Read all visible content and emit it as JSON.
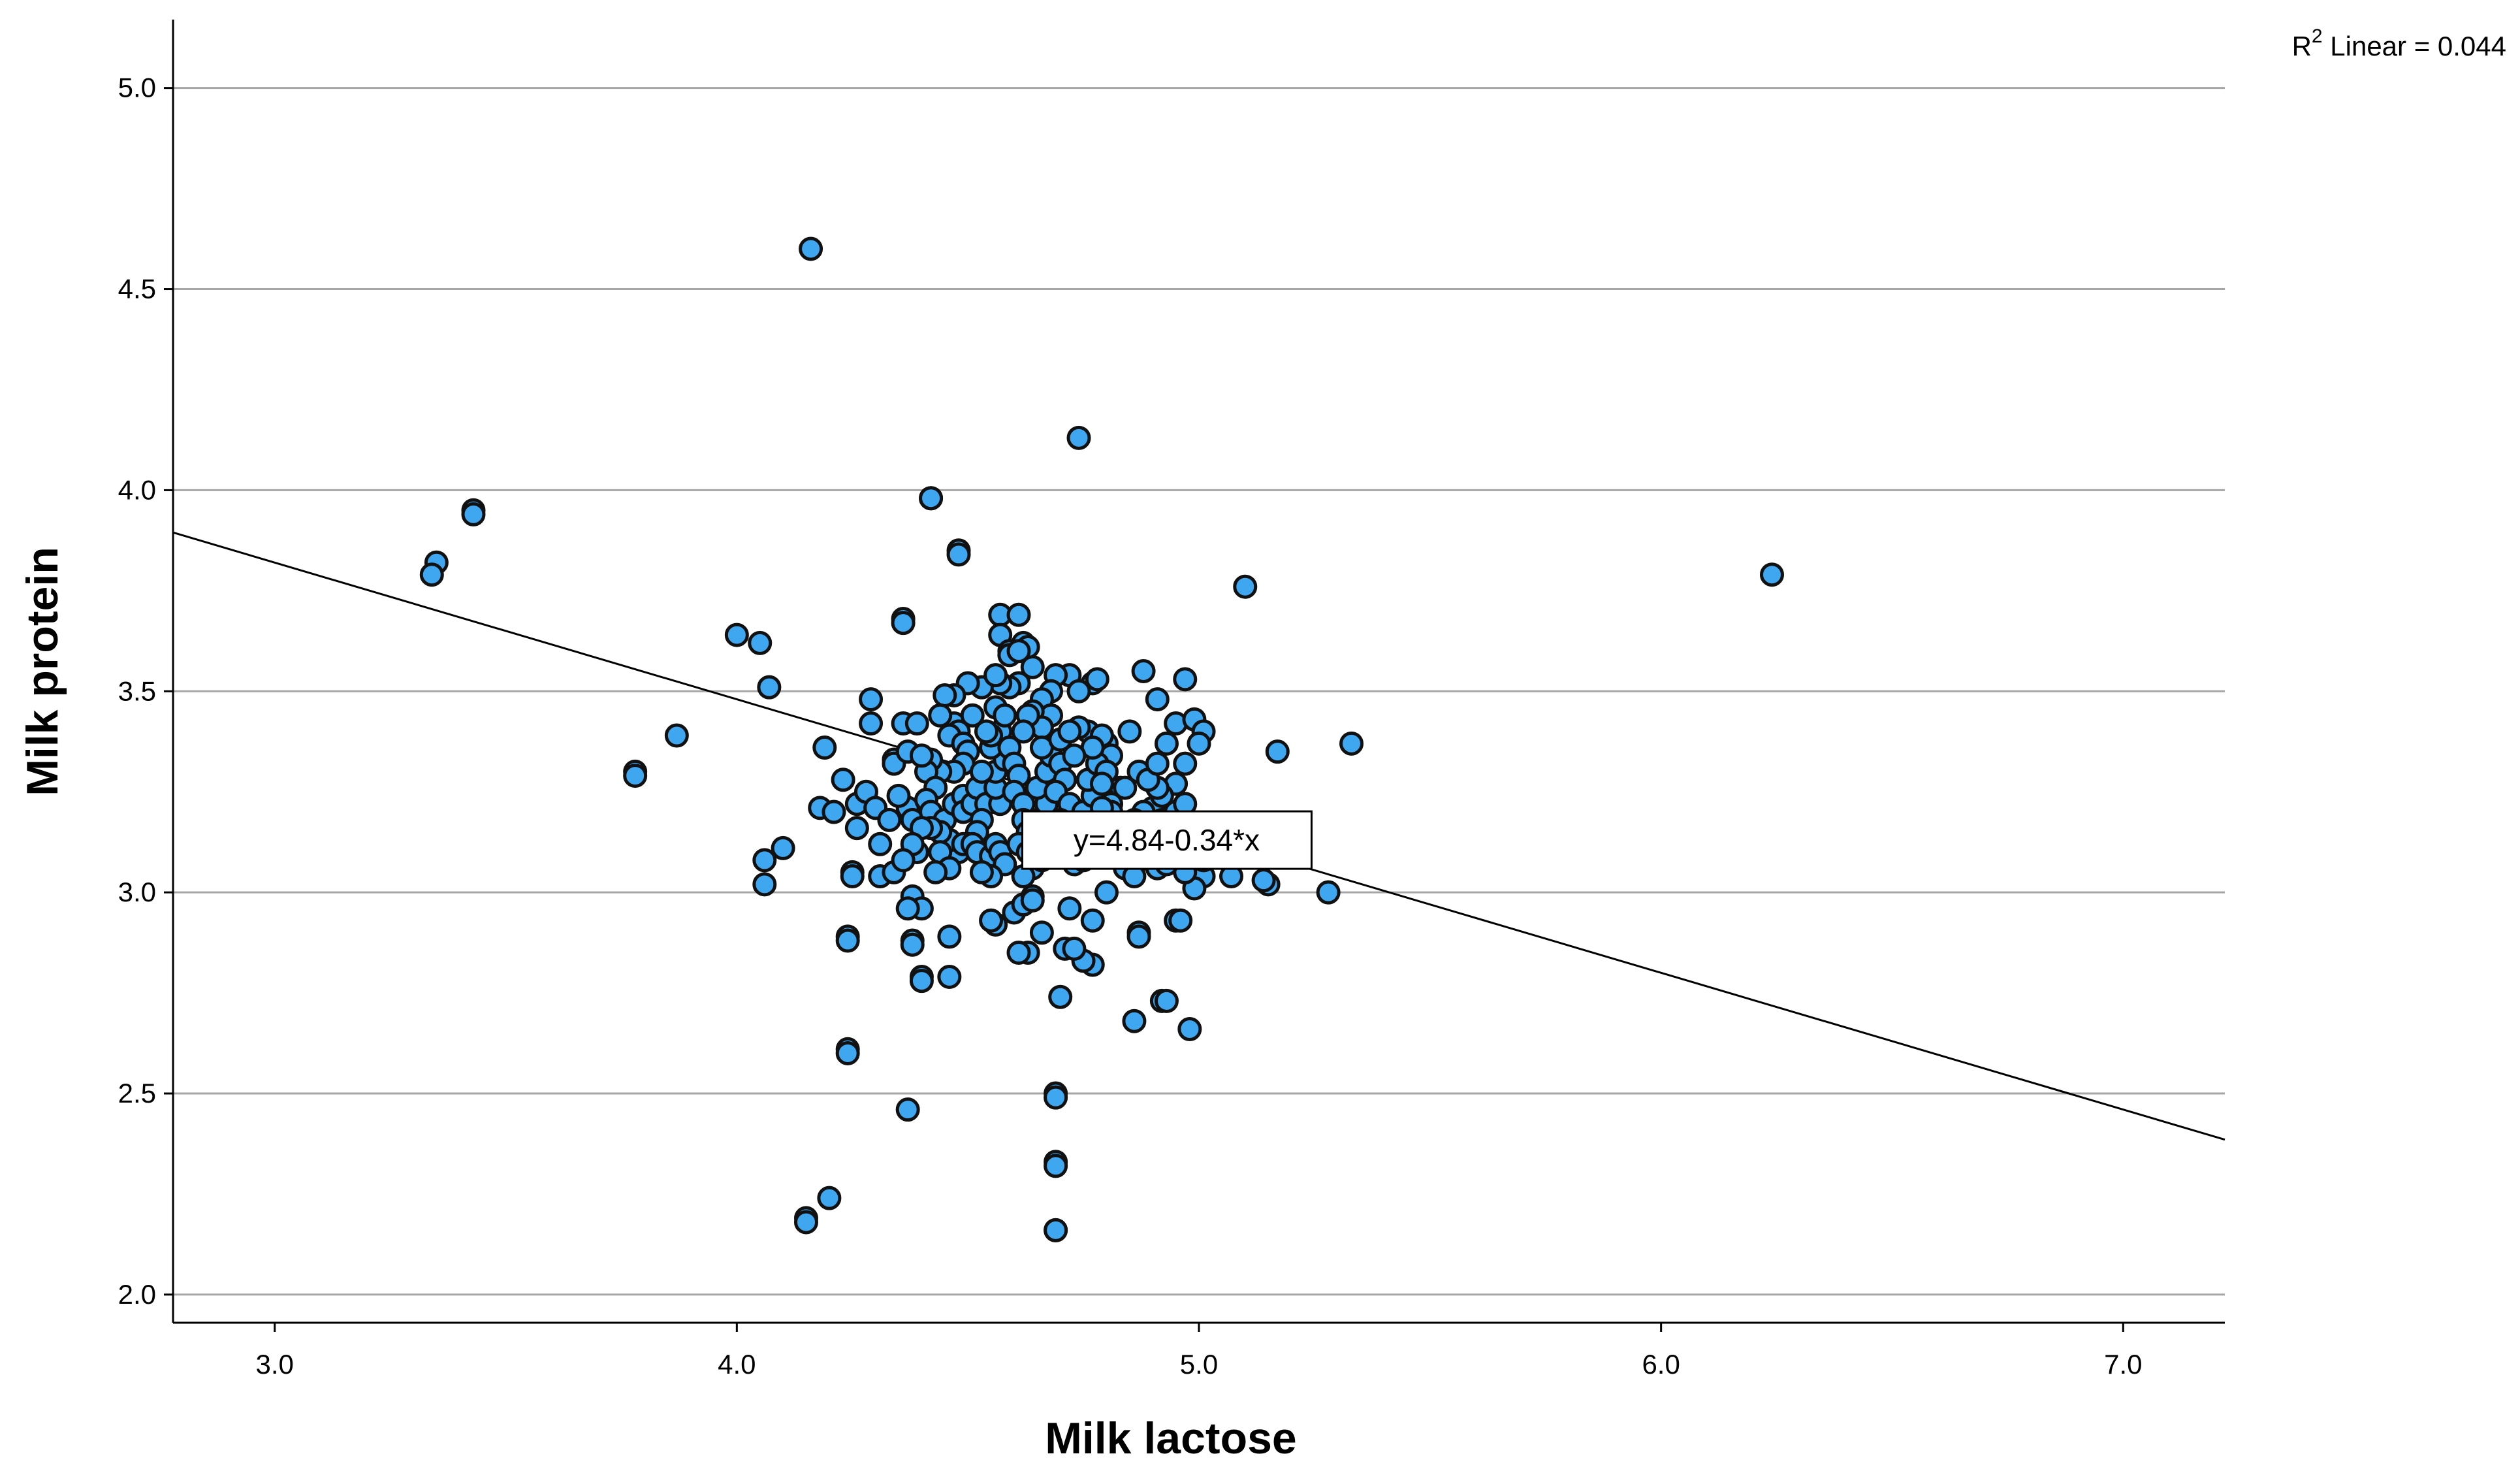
{
  "chart_data": {
    "type": "scatter",
    "title": "",
    "xlabel": "Milk lactose",
    "ylabel": "Milk protein",
    "xlim": [
      2.78,
      7.22
    ],
    "ylim": [
      1.93,
      5.17
    ],
    "x_ticks": [
      "3.0",
      "4.0",
      "5.0",
      "6.0",
      "7.0"
    ],
    "y_ticks": [
      "2.0",
      "2.5",
      "3.0",
      "3.5",
      "4.0",
      "4.5",
      "5.0"
    ],
    "grid": "horizontal",
    "point_color": "#3fa6f0",
    "fit_line": {
      "intercept": 4.84,
      "slope": -0.34,
      "label": "y=4.84-0.34*x",
      "label_at": [
        4.93,
        3.13
      ]
    },
    "r2_label": {
      "prefix": "R",
      "superscript": "2",
      "suffix": " Linear = 0.044"
    },
    "points": [
      [
        4.16,
        4.6
      ],
      [
        4.74,
        4.13
      ],
      [
        3.43,
        3.95
      ],
      [
        3.43,
        3.94
      ],
      [
        4.42,
        3.98
      ],
      [
        4.42,
        3.98
      ],
      [
        4.48,
        3.85
      ],
      [
        4.48,
        3.84
      ],
      [
        3.35,
        3.82
      ],
      [
        3.34,
        3.79
      ],
      [
        6.24,
        3.79
      ],
      [
        5.1,
        3.76
      ],
      [
        4.0,
        3.64
      ],
      [
        4.05,
        3.62
      ],
      [
        4.36,
        3.68
      ],
      [
        4.36,
        3.67
      ],
      [
        4.57,
        3.69
      ],
      [
        4.61,
        3.69
      ],
      [
        4.57,
        3.64
      ],
      [
        4.62,
        3.62
      ],
      [
        4.59,
        3.6
      ],
      [
        4.59,
        3.59
      ],
      [
        3.87,
        3.39
      ],
      [
        3.78,
        3.3
      ],
      [
        3.78,
        3.29
      ],
      [
        4.07,
        3.51
      ],
      [
        4.06,
        3.08
      ],
      [
        4.06,
        3.02
      ],
      [
        4.1,
        3.11
      ],
      [
        4.18,
        3.21
      ],
      [
        4.21,
        3.2
      ],
      [
        4.19,
        3.36
      ],
      [
        4.23,
        3.28
      ],
      [
        4.26,
        3.22
      ],
      [
        4.29,
        3.42
      ],
      [
        4.29,
        3.48
      ],
      [
        4.28,
        3.25
      ],
      [
        4.3,
        3.21
      ],
      [
        4.26,
        3.16
      ],
      [
        4.25,
        3.05
      ],
      [
        4.25,
        3.04
      ],
      [
        4.31,
        3.12
      ],
      [
        4.31,
        3.04
      ],
      [
        4.34,
        3.05
      ],
      [
        4.34,
        3.33
      ],
      [
        4.34,
        3.32
      ],
      [
        4.36,
        3.42
      ],
      [
        4.37,
        3.35
      ],
      [
        4.37,
        3.21
      ],
      [
        4.38,
        3.18
      ],
      [
        4.39,
        3.1
      ],
      [
        4.38,
        2.99
      ],
      [
        4.4,
        2.96
      ],
      [
        4.37,
        2.96
      ],
      [
        4.38,
        2.88
      ],
      [
        4.38,
        2.87
      ],
      [
        4.4,
        2.79
      ],
      [
        4.4,
        2.78
      ],
      [
        4.46,
        2.79
      ],
      [
        4.46,
        2.89
      ],
      [
        4.24,
        2.89
      ],
      [
        4.24,
        2.88
      ],
      [
        4.24,
        2.61
      ],
      [
        4.24,
        2.6
      ],
      [
        4.37,
        2.46
      ],
      [
        4.15,
        2.19
      ],
      [
        4.15,
        2.18
      ],
      [
        4.2,
        2.24
      ],
      [
        4.69,
        2.5
      ],
      [
        4.69,
        2.49
      ],
      [
        4.69,
        2.33
      ],
      [
        4.69,
        2.32
      ],
      [
        4.69,
        2.16
      ],
      [
        4.69,
        2.16
      ],
      [
        4.7,
        2.74
      ],
      [
        4.86,
        2.68
      ],
      [
        4.92,
        2.73
      ],
      [
        4.93,
        2.73
      ],
      [
        4.98,
        2.66
      ],
      [
        4.87,
        2.9
      ],
      [
        4.87,
        2.89
      ],
      [
        4.95,
        2.93
      ],
      [
        4.96,
        2.93
      ],
      [
        4.77,
        2.82
      ],
      [
        4.75,
        2.83
      ],
      [
        4.71,
        2.86
      ],
      [
        4.73,
        2.86
      ],
      [
        4.63,
        2.85
      ],
      [
        4.61,
        2.85
      ],
      [
        4.56,
        2.92
      ],
      [
        4.55,
        2.93
      ],
      [
        4.6,
        2.95
      ],
      [
        4.62,
        2.97
      ],
      [
        4.64,
        2.99
      ],
      [
        4.64,
        2.98
      ],
      [
        4.66,
        2.9
      ],
      [
        4.72,
        2.96
      ],
      [
        4.77,
        2.93
      ],
      [
        4.8,
        3.0
      ],
      [
        4.88,
        3.55
      ],
      [
        4.91,
        3.48
      ],
      [
        4.97,
        3.53
      ],
      [
        4.95,
        3.42
      ],
      [
        4.99,
        3.43
      ],
      [
        5.01,
        3.4
      ],
      [
        4.93,
        3.37
      ],
      [
        4.97,
        3.32
      ],
      [
        5.0,
        3.37
      ],
      [
        4.95,
        3.27
      ],
      [
        5.17,
        3.35
      ],
      [
        5.33,
        3.37
      ],
      [
        5.28,
        3.0
      ],
      [
        5.15,
        3.02
      ],
      [
        5.14,
        3.03
      ],
      [
        5.07,
        3.04
      ],
      [
        5.01,
        3.04
      ],
      [
        4.99,
        3.01
      ],
      [
        4.97,
        3.05
      ],
      [
        4.91,
        3.06
      ],
      [
        4.93,
        3.07
      ],
      [
        4.87,
        3.08
      ],
      [
        4.9,
        3.21
      ],
      [
        4.92,
        3.24
      ],
      [
        4.91,
        3.26
      ],
      [
        4.83,
        3.26
      ],
      [
        4.79,
        3.24
      ],
      [
        4.85,
        3.4
      ],
      [
        4.8,
        3.37
      ],
      [
        4.81,
        3.34
      ],
      [
        4.76,
        3.4
      ],
      [
        4.74,
        3.41
      ],
      [
        4.79,
        3.39
      ],
      [
        4.77,
        3.52
      ],
      [
        4.78,
        3.53
      ],
      [
        4.72,
        3.54
      ],
      [
        4.74,
        3.5
      ],
      [
        4.69,
        3.54
      ],
      [
        4.68,
        3.5
      ],
      [
        4.66,
        3.48
      ],
      [
        4.68,
        3.44
      ],
      [
        4.64,
        3.45
      ],
      [
        4.66,
        3.41
      ],
      [
        4.63,
        3.44
      ],
      [
        4.62,
        3.4
      ],
      [
        4.64,
        3.56
      ],
      [
        4.61,
        3.52
      ],
      [
        4.59,
        3.51
      ],
      [
        4.57,
        3.52
      ],
      [
        4.53,
        3.51
      ],
      [
        4.56,
        3.54
      ],
      [
        4.5,
        3.52
      ],
      [
        4.47,
        3.49
      ],
      [
        4.45,
        3.49
      ],
      [
        4.47,
        3.42
      ],
      [
        4.48,
        3.4
      ],
      [
        4.46,
        3.39
      ],
      [
        4.49,
        3.37
      ],
      [
        4.5,
        3.35
      ],
      [
        4.49,
        3.32
      ],
      [
        4.47,
        3.3
      ],
      [
        4.44,
        3.3
      ],
      [
        4.42,
        3.33
      ],
      [
        4.41,
        3.3
      ],
      [
        4.4,
        3.34
      ],
      [
        4.39,
        3.42
      ],
      [
        4.43,
        3.26
      ],
      [
        4.41,
        3.23
      ],
      [
        4.42,
        3.2
      ],
      [
        4.45,
        3.18
      ],
      [
        4.47,
        3.22
      ],
      [
        4.49,
        3.24
      ],
      [
        4.49,
        3.2
      ],
      [
        4.51,
        3.22
      ],
      [
        4.52,
        3.26
      ],
      [
        4.54,
        3.22
      ],
      [
        4.53,
        3.18
      ],
      [
        4.52,
        3.15
      ],
      [
        4.5,
        3.12
      ],
      [
        4.48,
        3.1
      ],
      [
        4.46,
        3.13
      ],
      [
        4.44,
        3.15
      ],
      [
        4.42,
        3.16
      ],
      [
        4.4,
        3.16
      ],
      [
        4.44,
        3.1
      ],
      [
        4.46,
        3.06
      ],
      [
        4.43,
        3.05
      ],
      [
        4.49,
        3.12
      ],
      [
        4.51,
        3.12
      ],
      [
        4.52,
        3.1
      ],
      [
        4.55,
        3.09
      ],
      [
        4.56,
        3.12
      ],
      [
        4.57,
        3.1
      ],
      [
        4.58,
        3.07
      ],
      [
        4.55,
        3.04
      ],
      [
        4.53,
        3.05
      ],
      [
        4.57,
        3.22
      ],
      [
        4.56,
        3.26
      ],
      [
        4.56,
        3.3
      ],
      [
        4.58,
        3.33
      ],
      [
        4.55,
        3.36
      ],
      [
        4.57,
        3.4
      ],
      [
        4.55,
        3.39
      ],
      [
        4.54,
        3.4
      ],
      [
        4.59,
        3.36
      ],
      [
        4.6,
        3.32
      ],
      [
        4.61,
        3.29
      ],
      [
        4.6,
        3.25
      ],
      [
        4.62,
        3.22
      ],
      [
        4.62,
        3.18
      ],
      [
        4.63,
        3.15
      ],
      [
        4.61,
        3.12
      ],
      [
        4.63,
        3.1
      ],
      [
        4.64,
        3.06
      ],
      [
        4.62,
        3.04
      ],
      [
        4.66,
        3.08
      ],
      [
        4.66,
        3.12
      ],
      [
        4.65,
        3.18
      ],
      [
        4.67,
        3.22
      ],
      [
        4.65,
        3.26
      ],
      [
        4.67,
        3.3
      ],
      [
        4.68,
        3.34
      ],
      [
        4.66,
        3.36
      ],
      [
        4.7,
        3.38
      ],
      [
        4.7,
        3.32
      ],
      [
        4.71,
        3.28
      ],
      [
        4.69,
        3.25
      ],
      [
        4.72,
        3.22
      ],
      [
        4.7,
        3.18
      ],
      [
        4.73,
        3.14
      ],
      [
        4.71,
        3.1
      ],
      [
        4.73,
        3.07
      ],
      [
        4.75,
        3.08
      ],
      [
        4.74,
        3.12
      ],
      [
        4.76,
        3.16
      ],
      [
        4.75,
        3.2
      ],
      [
        4.77,
        3.24
      ],
      [
        4.76,
        3.28
      ],
      [
        4.78,
        3.32
      ],
      [
        4.77,
        3.36
      ],
      [
        4.73,
        3.34
      ],
      [
        4.72,
        3.4
      ],
      [
        4.8,
        3.3
      ],
      [
        4.79,
        3.27
      ],
      [
        4.81,
        3.22
      ],
      [
        4.78,
        3.18
      ],
      [
        4.8,
        3.14
      ],
      [
        4.82,
        3.1
      ],
      [
        4.84,
        3.12
      ],
      [
        4.83,
        3.17
      ],
      [
        4.81,
        3.2
      ],
      [
        4.79,
        3.21
      ],
      [
        4.84,
        3.06
      ],
      [
        4.86,
        3.04
      ],
      [
        4.89,
        3.12
      ],
      [
        4.93,
        3.1
      ],
      [
        4.96,
        3.09
      ],
      [
        4.98,
        3.12
      ],
      [
        5.01,
        3.08
      ],
      [
        4.94,
        3.15
      ],
      [
        4.92,
        3.18
      ],
      [
        4.89,
        3.16
      ],
      [
        4.88,
        3.2
      ],
      [
        4.86,
        3.18
      ],
      [
        4.84,
        3.26
      ],
      [
        4.87,
        3.3
      ],
      [
        4.89,
        3.28
      ],
      [
        4.91,
        3.32
      ],
      [
        4.95,
        3.2
      ],
      [
        4.97,
        3.22
      ],
      [
        4.63,
        3.61
      ],
      [
        4.61,
        3.6
      ],
      [
        4.56,
        3.46
      ],
      [
        4.58,
        3.44
      ],
      [
        4.51,
        3.44
      ],
      [
        4.44,
        3.44
      ],
      [
        4.53,
        3.3
      ],
      [
        4.35,
        3.24
      ],
      [
        4.38,
        3.12
      ],
      [
        4.36,
        3.08
      ],
      [
        4.33,
        3.18
      ]
    ]
  }
}
